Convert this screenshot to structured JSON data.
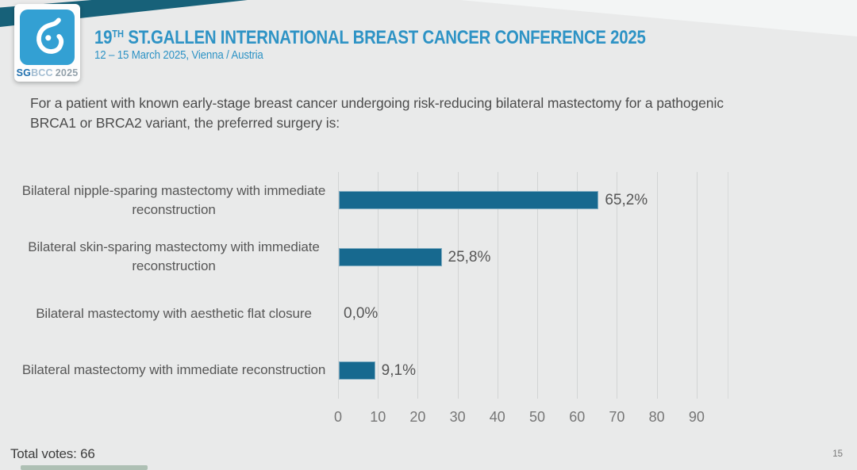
{
  "header": {
    "title_number": "19",
    "title_superscript": "TH",
    "title_rest": " ST.GALLEN INTERNATIONAL BREAST CANCER CONFERENCE 2025",
    "subtitle": "12 – 15 March 2025, Vienna / Austria",
    "logo": {
      "icon": "sgbcc-breast-logo-icon",
      "text_bold": "SG",
      "text_light": "BCC",
      "text_year": "2025"
    }
  },
  "question": "For a patient with known early-stage breast cancer undergoing risk-reducing bilateral mastectomy for a pathogenic BRCA1 or BRCA2 variant, the preferred surgery is:",
  "chart_data": {
    "type": "bar",
    "orientation": "horizontal",
    "title": "",
    "xlabel": "",
    "ylabel": "",
    "categories": [
      "Bilateral nipple-sparing mastectomy with immediate reconstruction",
      "Bilateral skin-sparing mastectomy with immediate reconstruction",
      "Bilateral mastectomy with aesthetic flat closure",
      "Bilateral mastectomy with immediate reconstruction"
    ],
    "values": [
      65.2,
      25.8,
      0.0,
      9.1
    ],
    "value_labels": [
      "65,2%",
      "25,8%",
      "0,0%",
      "9,1%"
    ],
    "x_ticks": [
      0,
      10,
      20,
      30,
      40,
      50,
      60,
      70,
      80,
      90
    ],
    "xlim": [
      0,
      98
    ],
    "grid": true,
    "legend": false,
    "bar_color": "#17698f"
  },
  "footer": {
    "total_votes_label": "Total votes: 66",
    "page_number": "15"
  },
  "colors": {
    "background": "#e9eaea",
    "accent_title": "#2e93c5",
    "ribbon": "#176179",
    "bar": "#17698f",
    "gridline": "#d2d4d4",
    "text": "#575757"
  }
}
